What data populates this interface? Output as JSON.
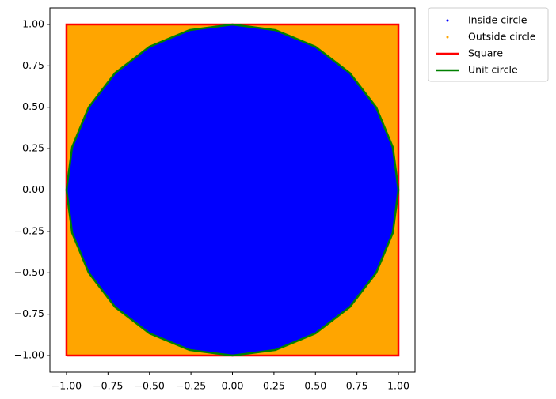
{
  "chart_data": {
    "type": "scatter",
    "xlim": [
      -1.1,
      1.1
    ],
    "ylim": [
      -1.1,
      1.1
    ],
    "xticks": [
      {
        "value": -1,
        "label": "−1.00"
      },
      {
        "value": -0.75,
        "label": "−0.75"
      },
      {
        "value": -0.5,
        "label": "−0.50"
      },
      {
        "value": -0.25,
        "label": "−0.25"
      },
      {
        "value": 0,
        "label": "0.00"
      },
      {
        "value": 0.25,
        "label": "0.25"
      },
      {
        "value": 0.5,
        "label": "0.50"
      },
      {
        "value": 0.75,
        "label": "0.75"
      },
      {
        "value": 1,
        "label": "1.00"
      }
    ],
    "yticks": [
      {
        "value": -1,
        "label": "−1.00"
      },
      {
        "value": -0.75,
        "label": "−0.75"
      },
      {
        "value": -0.5,
        "label": "−0.50"
      },
      {
        "value": -0.25,
        "label": "−0.25"
      },
      {
        "value": 0,
        "label": "0.00"
      },
      {
        "value": 0.25,
        "label": "0.25"
      },
      {
        "value": 0.5,
        "label": "0.50"
      },
      {
        "value": 0.75,
        "label": "0.75"
      },
      {
        "value": 1,
        "label": "1.00"
      }
    ],
    "legend": "outside-upper-right",
    "series": [
      {
        "name": "Inside circle",
        "color": "blue",
        "kind": "points"
      },
      {
        "name": "Outside circle",
        "color": "orange",
        "kind": "points"
      },
      {
        "name": "Square",
        "color": "red",
        "kind": "line",
        "x": [
          -1,
          1,
          1,
          -1,
          -1
        ],
        "y": [
          -1,
          -1,
          1,
          1,
          -1
        ]
      },
      {
        "name": "Unit circle",
        "color": "green",
        "kind": "line",
        "x": [
          1,
          0.966,
          0.866,
          0.707,
          0.5,
          0.259,
          0,
          -0.259,
          -0.5,
          -0.707,
          -0.866,
          -0.966,
          -1,
          -0.966,
          -0.866,
          -0.707,
          -0.5,
          -0.259,
          0,
          0.259,
          0.5,
          0.707,
          0.866,
          0.966,
          1
        ],
        "y": [
          0,
          0.259,
          0.5,
          0.707,
          0.866,
          0.966,
          1,
          0.966,
          0.866,
          0.707,
          0.5,
          0.259,
          0,
          -0.259,
          -0.5,
          -0.707,
          -0.866,
          -0.966,
          -1,
          -0.966,
          -0.866,
          -0.707,
          -0.5,
          -0.259,
          0
        ]
      }
    ]
  }
}
